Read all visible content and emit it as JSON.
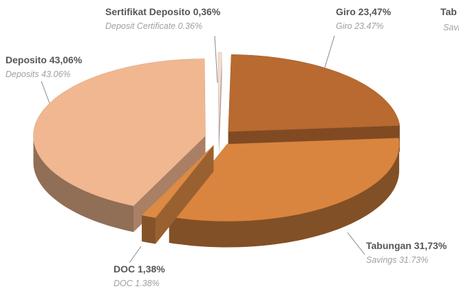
{
  "chart_data": {
    "type": "pie",
    "categories": [
      "Giro",
      "Tabungan",
      "DOC",
      "Deposito",
      "Sertifikat Deposito"
    ],
    "values": [
      23.47,
      31.73,
      1.38,
      43.06,
      0.36
    ],
    "value_labels": [
      "23,47%",
      "31,73%",
      "1,38%",
      "43,06%",
      "0,36%"
    ],
    "categories_en": [
      "Giro",
      "Savings",
      "DOC",
      "Deposits",
      "Deposit Certificate"
    ],
    "value_labels_en": [
      "23.47%",
      "31.73%",
      "1.38%",
      "43.06%",
      "0.36%"
    ],
    "colors": [
      "#b86a30",
      "#d9853f",
      "#dc8a44",
      "#f1b790",
      "#f4dccd"
    ],
    "annotations": [
      "Tab",
      "Savi"
    ]
  }
}
